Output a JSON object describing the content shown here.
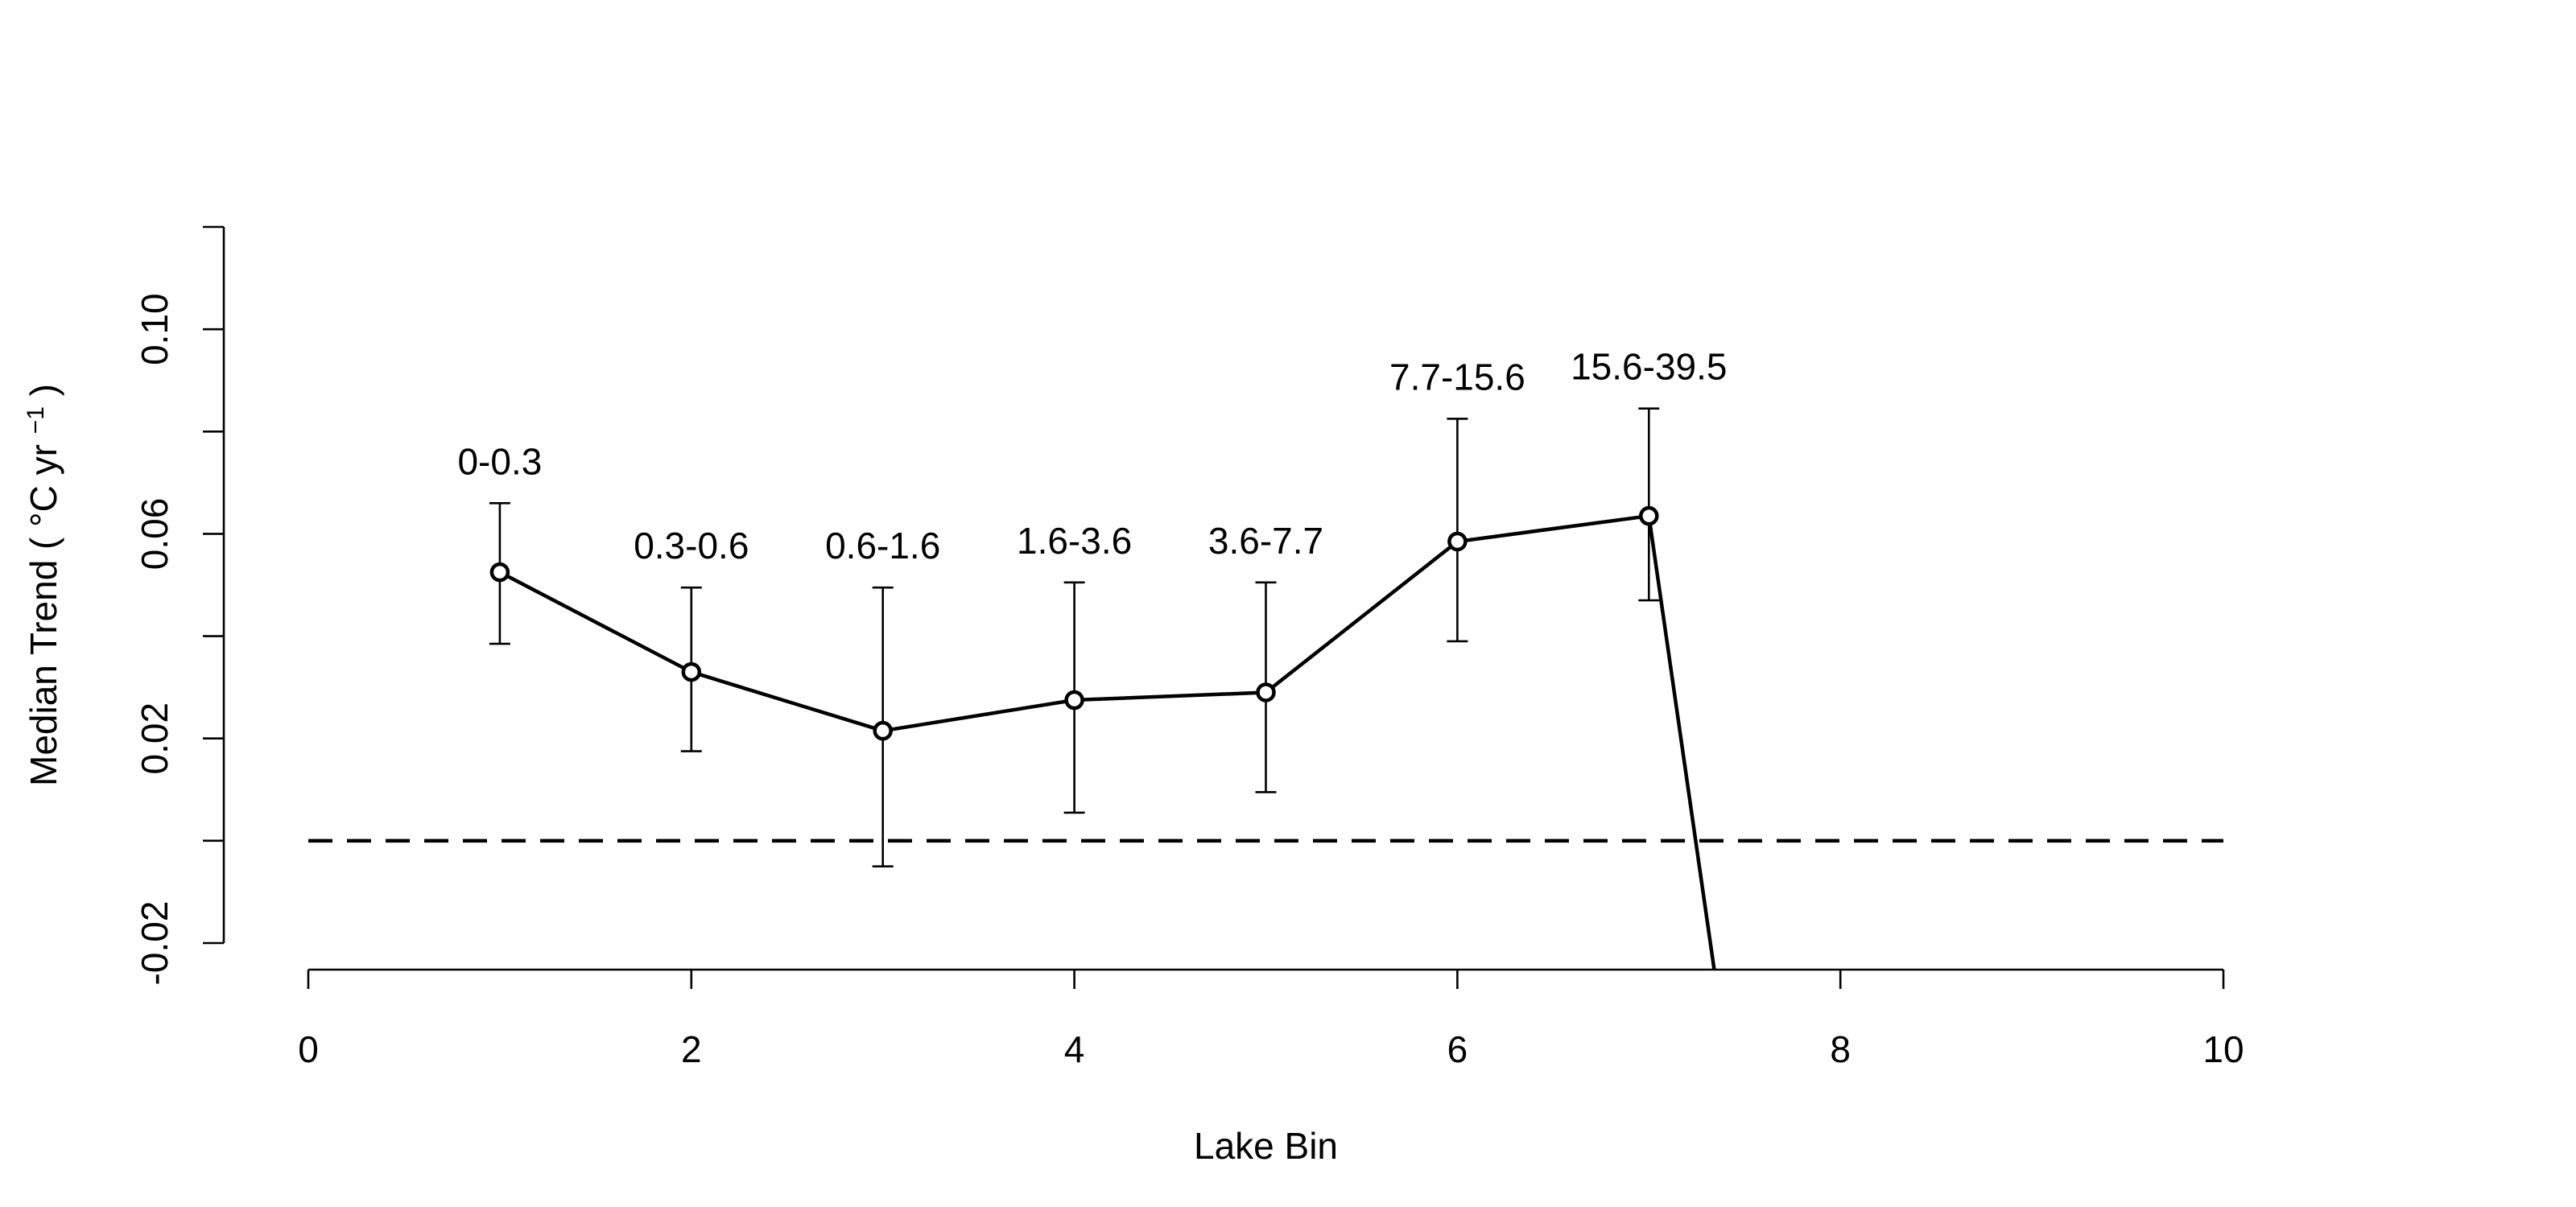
{
  "chart_data": {
    "type": "line",
    "title": "",
    "xlabel": "Lake Bin",
    "ylabel_prefix": "Median Trend (",
    "ylabel_unit_main": "°C yr",
    "ylabel_exponent": "−1",
    "ylabel_suffix": ")",
    "xlim": [
      0,
      10
    ],
    "ylim": [
      -0.02,
      0.12
    ],
    "xticks": [
      0,
      2,
      4,
      6,
      8,
      10
    ],
    "xtick_labels": [
      "0",
      "2",
      "4",
      "6",
      "8",
      "10"
    ],
    "yticks": [
      -0.02,
      0.02,
      0.06,
      0.1
    ],
    "ytick_labels": [
      "-0.02",
      "0.02",
      "0.06",
      "0.10"
    ],
    "grid": false,
    "legend": false,
    "reference_line": {
      "y": 0,
      "style": "dashed"
    },
    "series": [
      {
        "x": [
          1,
          2,
          3,
          4,
          5,
          6,
          7,
          7.35
        ],
        "y": [
          0.0525,
          0.033,
          0.0215,
          0.0275,
          0.029,
          0.0585,
          0.0635,
          -0.0275
        ]
      }
    ],
    "points": [
      {
        "x": 1,
        "y": 0.0525,
        "lower": 0.0385,
        "upper": 0.066,
        "label": "0-0.3"
      },
      {
        "x": 2,
        "y": 0.033,
        "lower": 0.0175,
        "upper": 0.0495,
        "label": "0.3-0.6"
      },
      {
        "x": 3,
        "y": 0.0215,
        "lower": -0.005,
        "upper": 0.0495,
        "label": "0.6-1.6"
      },
      {
        "x": 4,
        "y": 0.0275,
        "lower": 0.0055,
        "upper": 0.0505,
        "label": "1.6-3.6"
      },
      {
        "x": 5,
        "y": 0.029,
        "lower": 0.0095,
        "upper": 0.0505,
        "label": "3.6-7.7"
      },
      {
        "x": 6,
        "y": 0.0585,
        "lower": 0.039,
        "upper": 0.0825,
        "label": "7.7-15.6"
      },
      {
        "x": 7,
        "y": 0.0635,
        "lower": 0.047,
        "upper": 0.0845,
        "label": "15.6-39.5"
      }
    ]
  }
}
